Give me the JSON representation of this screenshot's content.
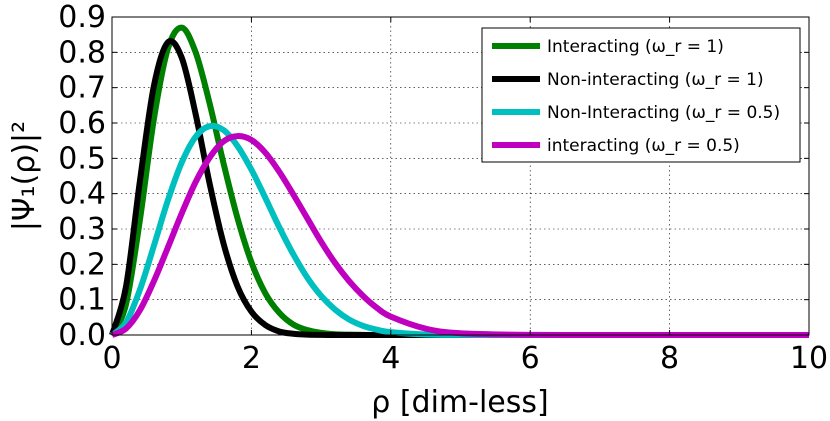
{
  "chart_data": {
    "type": "line",
    "title": "",
    "xlabel": "ρ [dim-less]",
    "ylabel": "|Ψ₁(ρ)|²",
    "xlim": [
      0,
      10
    ],
    "ylim": [
      0,
      0.9
    ],
    "xticks": [
      0,
      2,
      4,
      6,
      8,
      10
    ],
    "yticks": [
      0.0,
      0.1,
      0.2,
      0.3,
      0.4,
      0.5,
      0.6,
      0.7,
      0.8,
      0.9
    ],
    "xtick_labels": [
      "0",
      "2",
      "4",
      "6",
      "8",
      "10"
    ],
    "ytick_labels": [
      "0.0",
      "0.1",
      "0.2",
      "0.3",
      "0.4",
      "0.5",
      "0.6",
      "0.7",
      "0.8",
      "0.9"
    ],
    "grid": true,
    "legend_position": "top-right",
    "x": [
      0.0,
      0.2,
      0.4,
      0.6,
      0.8,
      1.0,
      1.2,
      1.4,
      1.6,
      1.8,
      2.0,
      2.2,
      2.4,
      2.6,
      2.8,
      3.0,
      3.2,
      3.4,
      3.6,
      3.8,
      4.0,
      4.5,
      5.0,
      6.0,
      7.0,
      8.0,
      9.0,
      10.0
    ],
    "series": [
      {
        "name": "Interacting (ω_r = 1)",
        "color": "#008000",
        "values": [
          0.0,
          0.086,
          0.325,
          0.61,
          0.809,
          0.87,
          0.8,
          0.656,
          0.486,
          0.331,
          0.206,
          0.118,
          0.063,
          0.03,
          0.014,
          0.006,
          0.002,
          0.001,
          0.0003,
          0.0001,
          0.0,
          0.0,
          0.0,
          0.0,
          0.0,
          0.0,
          0.0,
          0.0
        ]
      },
      {
        "name": "Non-interacting (ω_r = 1)",
        "color": "#000000",
        "values": [
          0.0,
          0.136,
          0.435,
          0.704,
          0.828,
          0.785,
          0.625,
          0.429,
          0.259,
          0.138,
          0.066,
          0.028,
          0.01,
          0.0035,
          0.001,
          0.0003,
          0.0001,
          0.0,
          0.0,
          0.0,
          0.0,
          0.0,
          0.0,
          0.0,
          0.0,
          0.0,
          0.0,
          0.0
        ]
      },
      {
        "name": "Non-Interacting (ω_r = 0.5)",
        "color": "#00bfbf",
        "values": [
          0.0,
          0.035,
          0.128,
          0.252,
          0.38,
          0.488,
          0.561,
          0.591,
          0.58,
          0.535,
          0.468,
          0.388,
          0.305,
          0.229,
          0.163,
          0.111,
          0.072,
          0.044,
          0.026,
          0.015,
          0.008,
          0.0015,
          0.0002,
          0.0,
          0.0,
          0.0,
          0.0,
          0.0
        ]
      },
      {
        "name": "interacting (ω_r = 0.5)",
        "color": "#bf00bf",
        "values": [
          0.0,
          0.018,
          0.07,
          0.152,
          0.247,
          0.344,
          0.433,
          0.502,
          0.548,
          0.563,
          0.552,
          0.516,
          0.462,
          0.398,
          0.331,
          0.264,
          0.204,
          0.153,
          0.111,
          0.077,
          0.052,
          0.018,
          0.005,
          0.0002,
          0.0,
          0.0,
          0.0,
          0.0
        ]
      }
    ]
  }
}
